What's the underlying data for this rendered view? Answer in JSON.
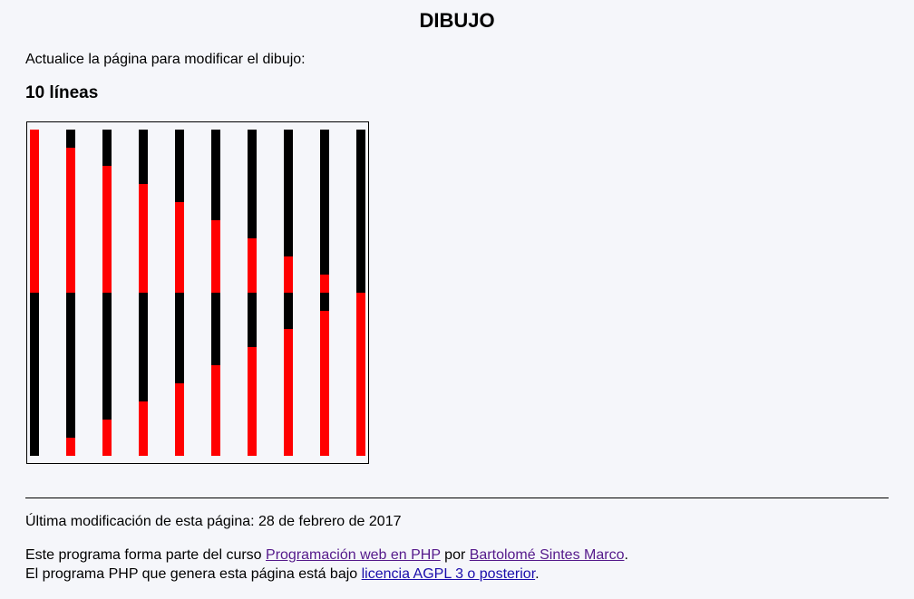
{
  "page": {
    "title": "DIBUJO",
    "intro": "Actualice la página para modificar el dibujo:",
    "heading": "10 líneas"
  },
  "drawing": {
    "line_count": 10,
    "colors": {
      "top_segment": "#ff0000",
      "bottom_segment": "#000000",
      "frame": "#000000"
    },
    "lines": [
      {
        "red_top_fraction": 1.0,
        "red_bottom_fraction": 0.0
      },
      {
        "red_top_fraction": 0.889,
        "red_bottom_fraction": 0.111
      },
      {
        "red_top_fraction": 0.778,
        "red_bottom_fraction": 0.222
      },
      {
        "red_top_fraction": 0.667,
        "red_bottom_fraction": 0.333
      },
      {
        "red_top_fraction": 0.556,
        "red_bottom_fraction": 0.444
      },
      {
        "red_top_fraction": 0.444,
        "red_bottom_fraction": 0.556
      },
      {
        "red_top_fraction": 0.333,
        "red_bottom_fraction": 0.667
      },
      {
        "red_top_fraction": 0.222,
        "red_bottom_fraction": 0.778
      },
      {
        "red_top_fraction": 0.111,
        "red_bottom_fraction": 0.889
      },
      {
        "red_top_fraction": 0.0,
        "red_bottom_fraction": 1.0
      }
    ]
  },
  "footer": {
    "last_modified": "Última modificación de esta página: 28 de febrero de 2017",
    "course_prefix": "Este programa forma parte del curso ",
    "course_link": "Programación web en PHP",
    "by_text": " por ",
    "author_link": "Bartolomé Sintes Marco",
    "period": ".",
    "license_prefix": "El programa PHP que genera esta página está bajo ",
    "license_link": "licencia AGPL 3 o posterior",
    "license_suffix": "."
  }
}
